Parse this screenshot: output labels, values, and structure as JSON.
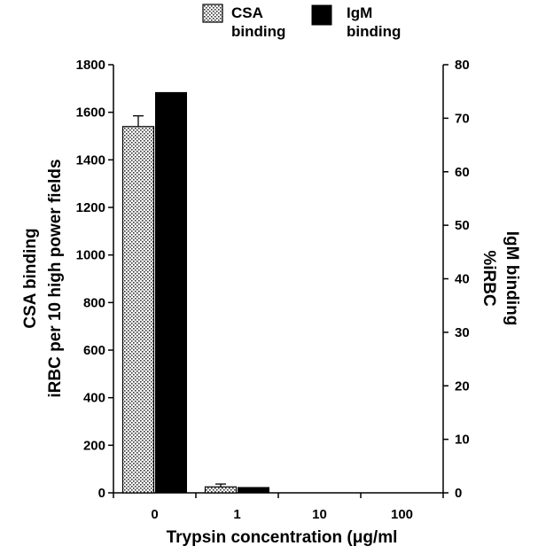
{
  "chart_data": {
    "type": "bar",
    "categories": [
      "0",
      "1",
      "10",
      "100"
    ],
    "series": [
      {
        "name": "CSA binding",
        "axis": "left",
        "values": [
          1540,
          25,
          0,
          0
        ],
        "error": [
          45,
          12,
          0,
          0
        ],
        "pattern": "dotted"
      },
      {
        "name": "IgM binding",
        "axis": "right",
        "values": [
          74.8,
          1.0,
          0,
          0
        ],
        "pattern": "solid"
      }
    ],
    "legend": {
      "placement": "top",
      "items": [
        {
          "line1": "CSA",
          "line2": "binding",
          "pattern": "dotted"
        },
        {
          "line1": "IgM",
          "line2": "binding",
          "pattern": "solid"
        }
      ]
    },
    "left_axis": {
      "label_line1": "CSA binding",
      "label_line2": "iRBC per 10 high power fields",
      "ylim": [
        0,
        1800
      ],
      "ticks": [
        "0",
        "200",
        "400",
        "600",
        "800",
        "1000",
        "1200",
        "1400",
        "1600",
        "1800"
      ]
    },
    "right_axis": {
      "label_line1": "IgM binding",
      "label_line2": "%iRBC",
      "ylim": [
        0,
        80
      ],
      "ticks": [
        "0",
        "10",
        "20",
        "30",
        "40",
        "50",
        "60",
        "70",
        "80"
      ]
    },
    "x_axis": {
      "label": "Trypsin concentration (μg/ml"
    },
    "grid": false
  }
}
